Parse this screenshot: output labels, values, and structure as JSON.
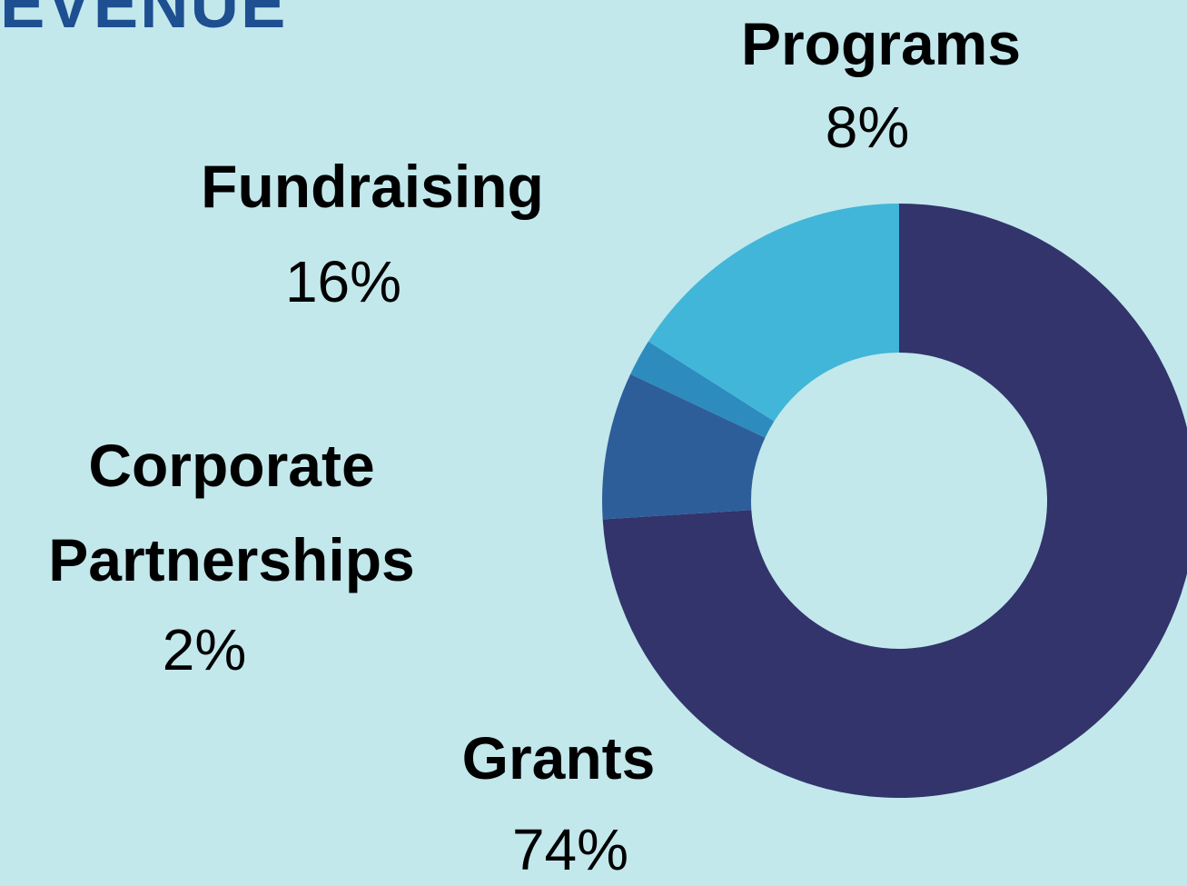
{
  "chart_data": {
    "type": "donut",
    "title": "EVENUE",
    "categories": [
      "Grants",
      "Programs",
      "Corporate Partnerships",
      "Fundraising"
    ],
    "values": [
      74,
      8,
      2,
      16
    ],
    "value_labels": [
      "74%",
      "8%",
      "2%",
      "16%"
    ],
    "colors": [
      "#32346b",
      "#2e5e99",
      "#2e8bbd",
      "#42b6d8"
    ]
  }
}
